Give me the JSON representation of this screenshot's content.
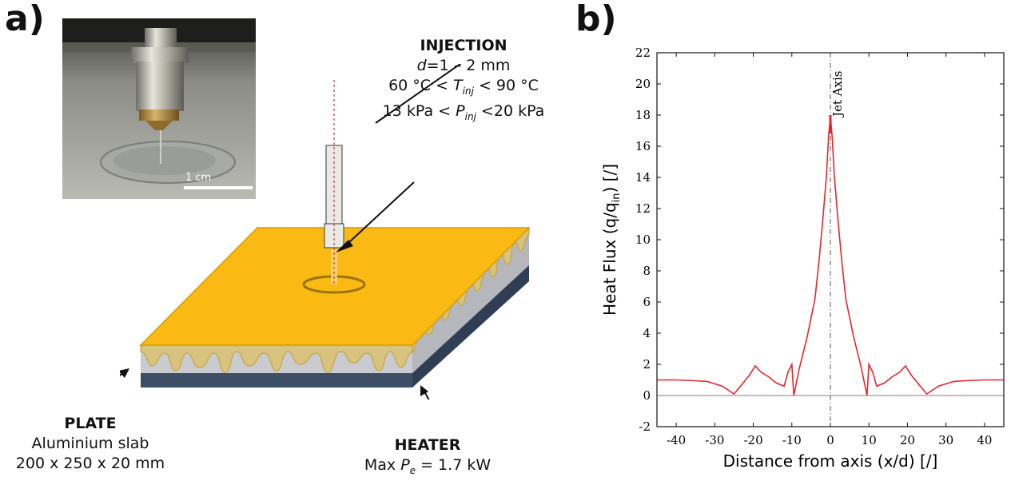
{
  "panel_a": {
    "letter": "a)",
    "photo": {
      "scale_label": "1 cm"
    },
    "injection": {
      "title": "INJECTION",
      "d_sym": "d",
      "d_val": "=1 – 2 mm",
      "t_pre": "60 °C < ",
      "t_sym": "T",
      "t_sub": "inj",
      "t_post": " < 90 °C",
      "p_pre": "13 kPa < ",
      "p_sym": "P",
      "p_sub": "inj",
      "p_post": " <20 kPa"
    },
    "plate": {
      "title": "PLATE",
      "line1": "Aluminium slab",
      "line2": "200 x 250 x 20 mm"
    },
    "heater": {
      "title": "HEATER",
      "pre": "Max ",
      "sym": "P",
      "sub": "e",
      "post": " = 1.7 kW"
    }
  },
  "panel_b": {
    "letter": "b)",
    "chart_data": {
      "type": "line",
      "title": "",
      "xlabel": "Distance from axis (x/d) [/]",
      "ylabel_main": "Heat Flux (q/q",
      "ylabel_sub": "in",
      "ylabel_end": ") [/]",
      "xlim": [
        -45,
        45
      ],
      "ylim": [
        -2,
        22
      ],
      "xticks": [
        -40,
        -30,
        -20,
        -10,
        0,
        10,
        20,
        30,
        40
      ],
      "yticks": [
        -2,
        0,
        2,
        4,
        6,
        8,
        10,
        12,
        14,
        16,
        18,
        20,
        22
      ],
      "annotation": "Jet Axis",
      "line_color": "#e8262a",
      "series": [
        {
          "x": [
            -45,
            -40,
            -35,
            -32,
            -28,
            -25,
            -23,
            -21,
            -19.5,
            -18,
            -16,
            -14,
            -12,
            -11,
            -10,
            -9.5,
            -8,
            -6,
            -4,
            -3,
            -2,
            -1,
            -0.5,
            0,
            0.5,
            1,
            2,
            3,
            4,
            6,
            8,
            9.5,
            10,
            11,
            12,
            14,
            16,
            18,
            19.5,
            21,
            23,
            25,
            28,
            32,
            35,
            40,
            45
          ],
          "y": [
            1.0,
            1.0,
            0.95,
            0.9,
            0.6,
            0.1,
            0.7,
            1.3,
            1.9,
            1.5,
            1.2,
            0.8,
            0.6,
            1.5,
            2.0,
            0.0,
            1.8,
            3.8,
            6.2,
            8.5,
            11.2,
            14.2,
            16.5,
            18.0,
            16.5,
            14.2,
            11.2,
            8.5,
            6.2,
            3.8,
            1.8,
            0.0,
            2.0,
            1.5,
            0.6,
            0.8,
            1.2,
            1.5,
            1.9,
            1.3,
            0.7,
            0.1,
            0.6,
            0.9,
            0.95,
            1.0,
            1.0
          ]
        }
      ]
    }
  }
}
